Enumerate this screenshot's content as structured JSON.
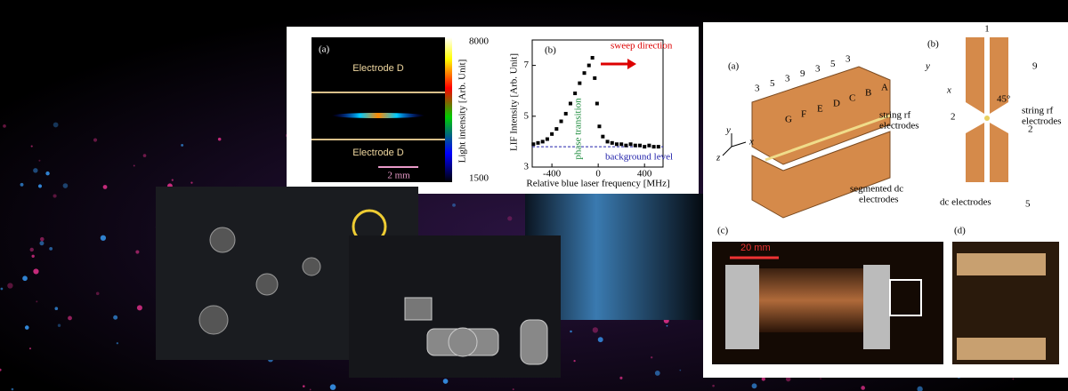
{
  "figure_a": {
    "panel_label": "(a)",
    "electrode_top": "Electrode D",
    "electrode_bottom": "Electrode D",
    "scale_bar": "2 mm",
    "colorbar_title": "Light intensity [Arb. Unit]",
    "colorbar_max": 8000,
    "colorbar_min": 1500
  },
  "chart_data": {
    "type": "scatter",
    "panel_label": "(b)",
    "y_label": "LIF Intensity [Arb. Unit]",
    "x_label": "Relative blue laser frequency [MHz]",
    "annotations": {
      "sweep": "sweep direction",
      "transition": "phase transition",
      "background": "background level"
    },
    "background_level": 3.8,
    "color": "#000000",
    "x": [
      -560,
      -520,
      -480,
      -440,
      -400,
      -360,
      -320,
      -280,
      -240,
      -200,
      -160,
      -120,
      -80,
      -50,
      -30,
      -10,
      10,
      40,
      80,
      120,
      160,
      200,
      240,
      280,
      320,
      360,
      400,
      440,
      480,
      520
    ],
    "values": [
      3.9,
      3.95,
      4.0,
      4.1,
      4.3,
      4.5,
      4.8,
      5.1,
      5.5,
      5.9,
      6.3,
      6.7,
      7.0,
      7.3,
      6.5,
      5.5,
      4.6,
      4.2,
      4.0,
      3.95,
      3.9,
      3.9,
      3.85,
      3.9,
      3.85,
      3.85,
      3.8,
      3.85,
      3.8,
      3.8
    ],
    "xlim": [
      -570,
      560
    ],
    "ylim": [
      3,
      8
    ],
    "xticks": [
      -400,
      0,
      400
    ],
    "yticks": [
      3,
      5,
      7
    ]
  },
  "diagram": {
    "panel_a": "(a)",
    "segment_widths": [
      3,
      5,
      3,
      9,
      3,
      5,
      3
    ],
    "segments": [
      "G",
      "F",
      "E",
      "D",
      "C",
      "B",
      "A"
    ],
    "rf_label": [
      "string rf",
      "electrodes"
    ],
    "dc_label": [
      "segmented dc",
      "electrodes"
    ],
    "axes": [
      "x",
      "y",
      "z"
    ],
    "panel_b": "(b)",
    "dim_top": 1,
    "dim_height": 9,
    "angle": "45°",
    "rf_label_b": [
      "string rf",
      "electrodes"
    ],
    "gap_left": 2,
    "gap_right": 2,
    "dc_label_b": "dc electrodes",
    "dim_width": 5,
    "axes_b": [
      "y",
      "x"
    ],
    "panel_c": "(c)",
    "scale_c": "20 mm",
    "panel_d": "(d)"
  }
}
